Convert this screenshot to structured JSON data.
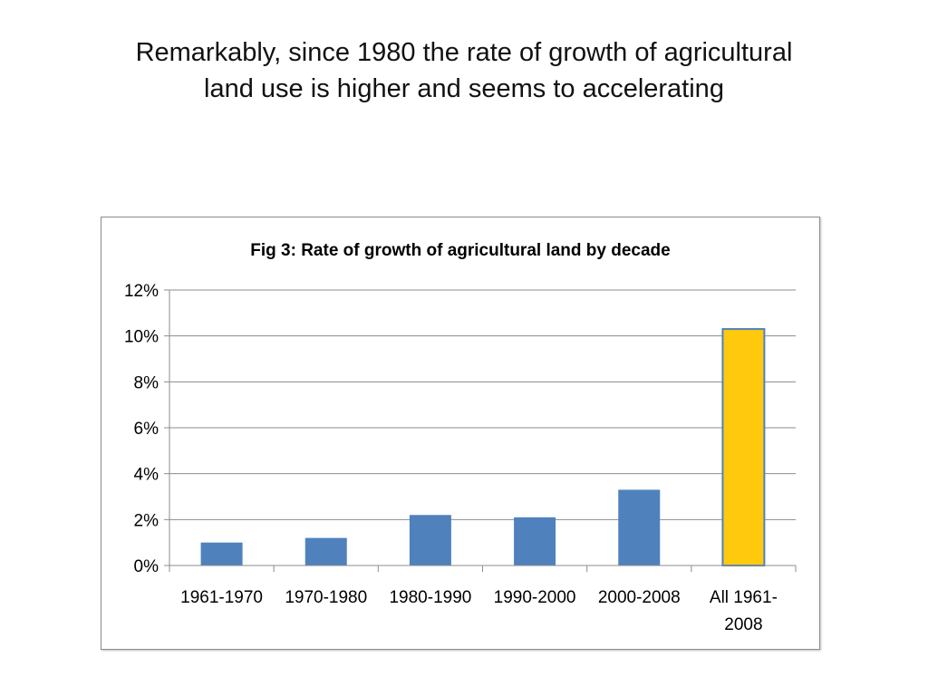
{
  "slide": {
    "title_line1": "Remarkably, since 1980 the rate of growth of agricultural",
    "title_line2": "land use is higher and seems to accelerating"
  },
  "chart_data": {
    "type": "bar",
    "title": "Fig 3: Rate of growth of agricultural land by decade",
    "xlabel": "",
    "ylabel": "",
    "categories": [
      "1961-1970",
      "1970-1980",
      "1980-1990",
      "1990-2000",
      "2000-2008",
      "All 1961-2008"
    ],
    "category_lines": [
      [
        "1961-1970"
      ],
      [
        "1970-1980"
      ],
      [
        "1980-1990"
      ],
      [
        "1990-2000"
      ],
      [
        "2000-2008"
      ],
      [
        "All 1961-",
        "2008"
      ]
    ],
    "values": [
      0.01,
      0.012,
      0.022,
      0.021,
      0.033,
      0.103
    ],
    "bar_colors": [
      "#4f81bd",
      "#4f81bd",
      "#4f81bd",
      "#4f81bd",
      "#4f81bd",
      "#ffc90e"
    ],
    "highlight_stroke": "#4f81bd",
    "ylim": [
      0,
      0.12
    ],
    "yticks": [
      0,
      0.02,
      0.04,
      0.06,
      0.08,
      0.1,
      0.12
    ],
    "ytick_labels": [
      "0%",
      "2%",
      "4%",
      "6%",
      "8%",
      "10%",
      "12%"
    ],
    "grid": true,
    "legend": "none"
  }
}
